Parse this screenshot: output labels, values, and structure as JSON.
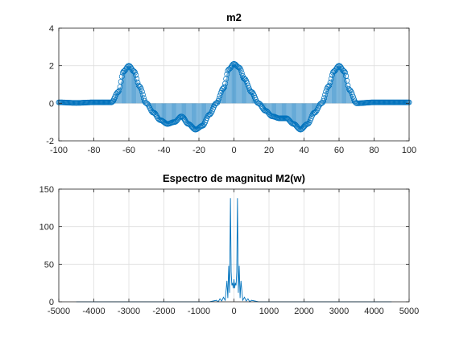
{
  "chart_data": [
    {
      "type": "stem",
      "title": "m2",
      "xlim": [
        -100,
        100
      ],
      "ylim": [
        -2,
        4
      ],
      "xticks": [
        -100,
        -80,
        -60,
        -40,
        -20,
        0,
        20,
        40,
        60,
        80,
        100
      ],
      "yticks": [
        -2,
        0,
        2,
        4
      ],
      "grid": true,
      "color": "#0072BD",
      "series": [
        {
          "x": [
            -100,
            -90,
            -80,
            -70,
            -66,
            -63,
            -60,
            -57,
            -54,
            -50,
            -46,
            -42,
            -38,
            -34,
            -30,
            -26,
            -22,
            -18,
            -14,
            -10,
            -6,
            -3,
            0,
            3,
            6,
            10,
            14,
            18,
            22,
            26,
            30,
            34,
            38,
            42,
            46,
            50,
            54,
            57,
            60,
            63,
            66,
            70,
            80,
            90,
            100
          ],
          "y": [
            0.05,
            0.02,
            0.05,
            0.05,
            0.6,
            1.7,
            2.0,
            1.7,
            0.9,
            0.0,
            -0.5,
            -0.9,
            -1.1,
            -1.0,
            -0.7,
            -1.1,
            -1.4,
            -1.2,
            -0.6,
            0.0,
            0.8,
            1.8,
            2.1,
            1.9,
            1.3,
            0.6,
            0.0,
            -0.4,
            -0.7,
            -0.8,
            -0.8,
            -1.1,
            -1.4,
            -1.1,
            -0.5,
            0.0,
            0.9,
            1.7,
            2.0,
            1.7,
            0.7,
            0.0,
            0.05,
            0.05,
            0.05
          ]
        }
      ]
    },
    {
      "type": "line",
      "title": "Espectro de magnitud M2(w)",
      "xlim": [
        -5000,
        5000
      ],
      "ylim": [
        0,
        150
      ],
      "xticks": [
        -5000,
        -4000,
        -3000,
        -2000,
        -1000,
        0,
        1000,
        2000,
        3000,
        4000,
        5000
      ],
      "yticks": [
        0,
        50,
        100,
        150
      ],
      "grid": true,
      "color": "#0072BD",
      "series": [
        {
          "x": [
            -4500,
            -1000,
            -700,
            -500,
            -450,
            -400,
            -350,
            -300,
            -250,
            -200,
            -175,
            -150,
            -125,
            -100,
            -80,
            -60,
            -40,
            -20,
            0,
            20,
            40,
            60,
            80,
            100,
            125,
            150,
            175,
            200,
            250,
            300,
            350,
            400,
            450,
            500,
            700,
            1000,
            4500
          ],
          "y": [
            0,
            0,
            0,
            2,
            0,
            4,
            1,
            6,
            2,
            28,
            5,
            48,
            12,
            138,
            40,
            22,
            25,
            18,
            30,
            18,
            25,
            22,
            40,
            138,
            12,
            48,
            5,
            28,
            2,
            6,
            1,
            4,
            0,
            2,
            0,
            0,
            0
          ]
        }
      ]
    }
  ]
}
